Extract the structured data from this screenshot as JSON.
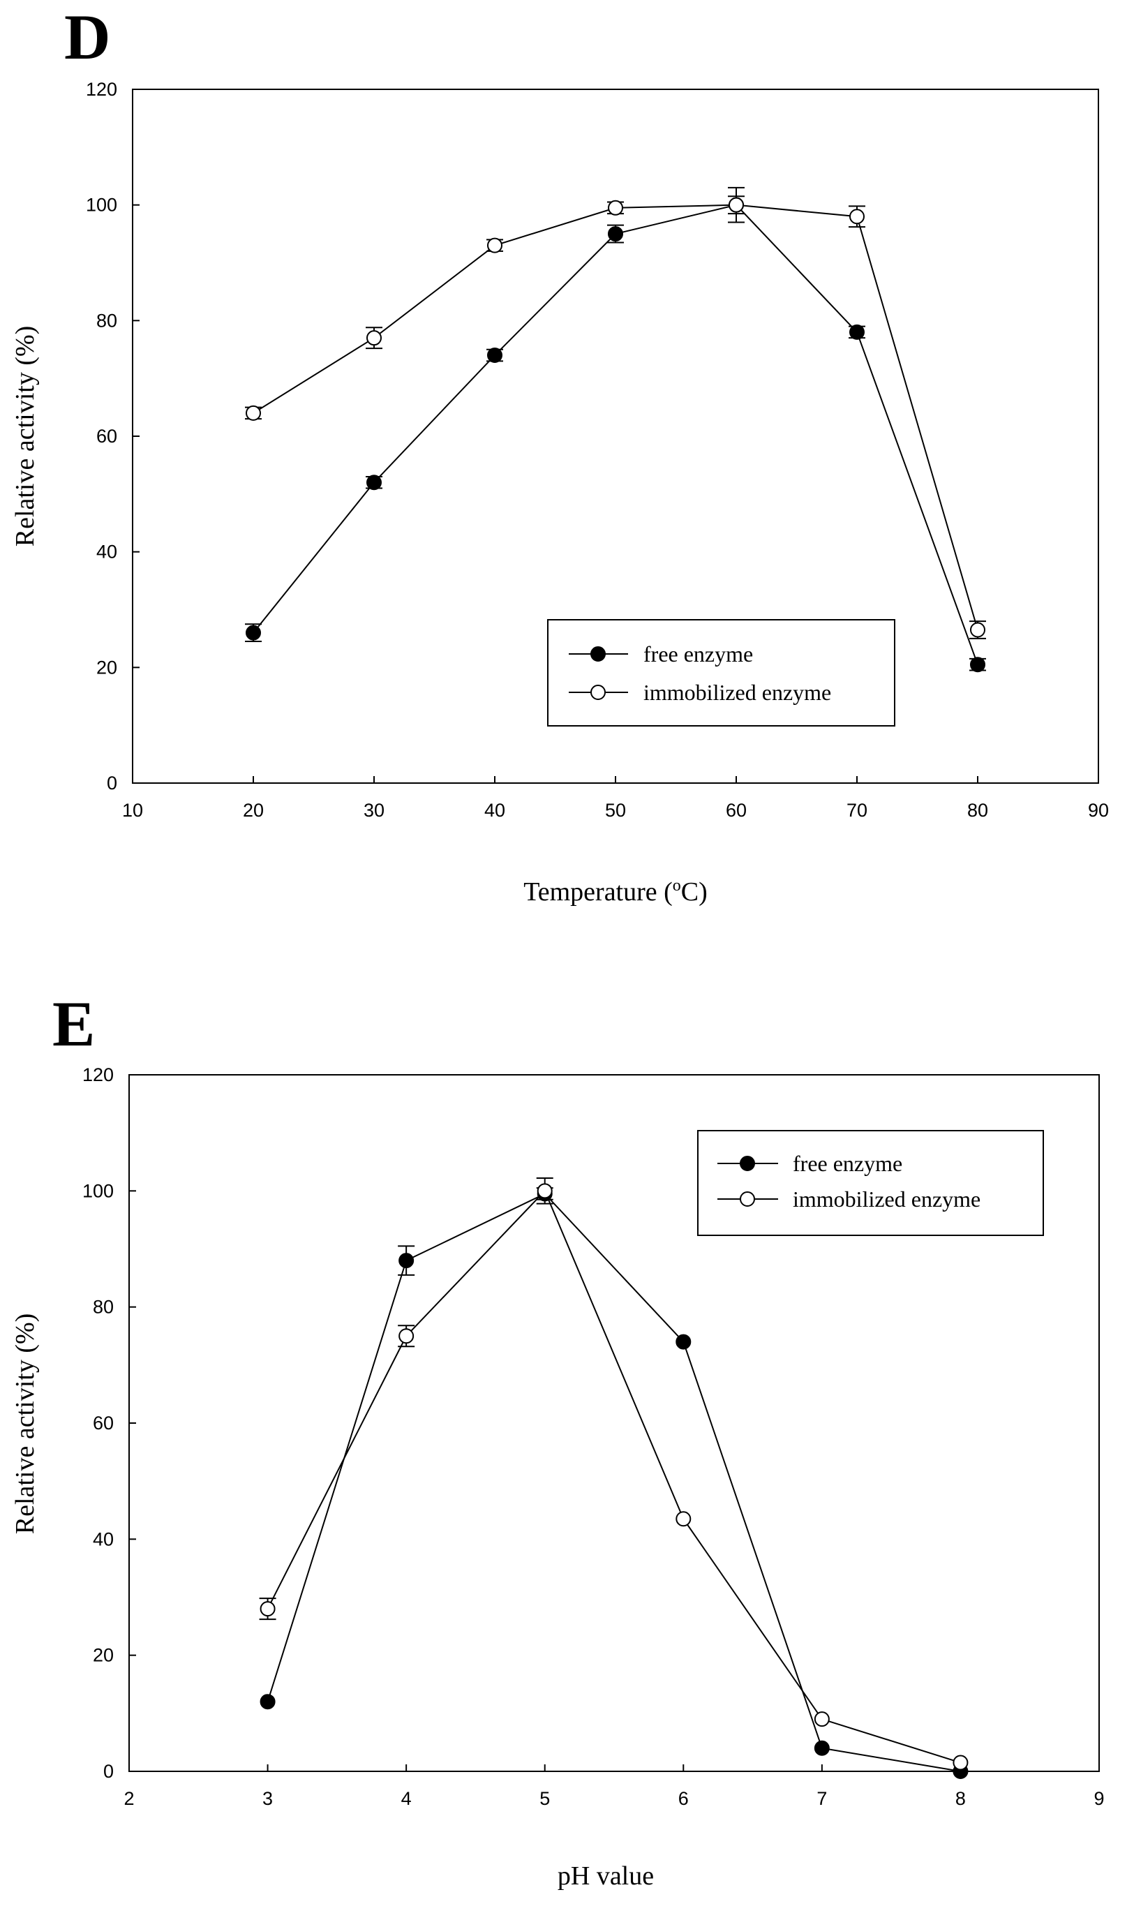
{
  "chart_data": [
    {
      "panel": "D",
      "type": "line",
      "xlabel": "Temperature (°C)",
      "xlabel_main": "Temperature (",
      "xlabel_sup": "o",
      "xlabel_end": "C)",
      "ylabel": "Relative activity (%)",
      "xlim": [
        10,
        90
      ],
      "ylim": [
        0,
        120
      ],
      "xticks": [
        10,
        20,
        30,
        40,
        50,
        60,
        70,
        80,
        90
      ],
      "yticks": [
        0,
        20,
        40,
        60,
        80,
        100,
        120
      ],
      "legend_position": "lower-right",
      "x": [
        20,
        30,
        40,
        50,
        60,
        70,
        80
      ],
      "series": [
        {
          "name": "free enzyme",
          "marker": "filled-circle",
          "values": [
            26,
            52,
            74,
            95,
            100,
            78,
            20.5
          ],
          "errors": [
            1.5,
            1,
            1,
            1.5,
            3,
            1,
            1
          ]
        },
        {
          "name": "immobilized enzyme",
          "marker": "open-circle",
          "values": [
            64,
            77,
            93,
            99.5,
            100,
            98,
            26.5
          ],
          "errors": [
            1,
            1.8,
            1,
            1,
            1.5,
            1.8,
            1.5
          ]
        }
      ]
    },
    {
      "panel": "E",
      "type": "line",
      "xlabel": "pH value",
      "ylabel": "Relative activity (%)",
      "xlim": [
        2,
        9
      ],
      "ylim": [
        0,
        120
      ],
      "xticks": [
        2,
        3,
        4,
        5,
        6,
        7,
        8,
        9
      ],
      "yticks": [
        0,
        20,
        40,
        60,
        80,
        100,
        120
      ],
      "legend_position": "upper-right",
      "x": [
        3,
        4,
        5,
        6,
        7,
        8
      ],
      "series": [
        {
          "name": "free enzyme",
          "marker": "filled-circle",
          "values": [
            12,
            88,
            99.5,
            74,
            4,
            0
          ],
          "errors": [
            0.5,
            2.5,
            1,
            0.5,
            0.5,
            0.5
          ]
        },
        {
          "name": "immobilized enzyme",
          "marker": "open-circle",
          "values": [
            28,
            75,
            100,
            43.5,
            9,
            1.5
          ],
          "errors": [
            1.8,
            1.8,
            2.2,
            0.5,
            0.5,
            0.5
          ]
        }
      ]
    }
  ]
}
